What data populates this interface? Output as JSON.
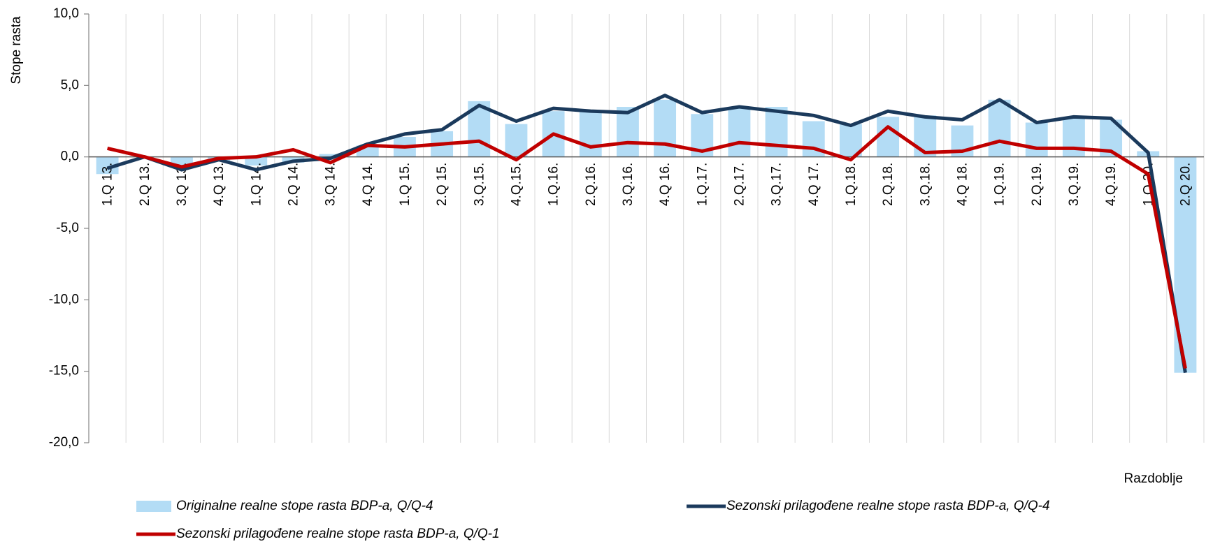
{
  "chart_data": {
    "type": "combo",
    "y_label": "Stope rasta",
    "x_label": "Razdoblje",
    "categories": [
      "1.Q 13.",
      "2.Q 13.",
      "3.Q 13.",
      "4.Q 13.",
      "1.Q 14.",
      "2.Q 14.",
      "3.Q 14.",
      "4.Q 14.",
      "1.Q 15.",
      "2.Q 15.",
      "3.Q.15.",
      "4.Q.15.",
      "1.Q.16.",
      "2.Q.16.",
      "3.Q.16.",
      "4.Q 16.",
      "1.Q.17.",
      "2.Q.17.",
      "3.Q.17.",
      "4.Q 17.",
      "1.Q.18.",
      "2.Q.18.",
      "3.Q.18.",
      "4.Q 18.",
      "1.Q.19.",
      "2.Q.19.",
      "3.Q.19.",
      "4.Q.19.",
      "1.Q 20.",
      "2.Q 20."
    ],
    "series": [
      {
        "name": "Originalne realne stope rasta BDP-a, Q/Q-4",
        "type": "bar",
        "color": "#b3dcf5",
        "values": [
          -1.2,
          0.0,
          -0.7,
          -0.3,
          -0.6,
          -0.4,
          0.2,
          0.8,
          1.4,
          1.8,
          3.9,
          2.3,
          3.2,
          3.2,
          3.5,
          4.0,
          3.0,
          3.4,
          3.5,
          2.5,
          2.3,
          2.8,
          2.9,
          2.2,
          4.0,
          2.4,
          2.8,
          2.6,
          0.4,
          -15.1
        ]
      },
      {
        "name": "Sezonski prilagođene realne stope rasta BDP-a, Q/Q-4",
        "type": "line",
        "color": "#1b3a5c",
        "values": [
          -0.8,
          0.0,
          -0.9,
          -0.2,
          -0.9,
          -0.3,
          -0.1,
          0.9,
          1.6,
          1.9,
          3.6,
          2.5,
          3.4,
          3.2,
          3.1,
          4.3,
          3.1,
          3.5,
          3.2,
          2.9,
          2.2,
          3.2,
          2.8,
          2.6,
          4.0,
          2.4,
          2.8,
          2.7,
          0.3,
          -15.1
        ]
      },
      {
        "name": "Sezonski prilagođene realne stope rasta BDP-a, Q/Q-1",
        "type": "line",
        "color": "#c00000",
        "values": [
          0.6,
          0.0,
          -0.7,
          -0.1,
          0.0,
          0.5,
          -0.4,
          0.8,
          0.7,
          0.9,
          1.1,
          -0.2,
          1.6,
          0.7,
          1.0,
          0.9,
          0.4,
          1.0,
          0.8,
          0.6,
          -0.2,
          2.1,
          0.3,
          0.4,
          1.1,
          0.6,
          0.6,
          0.4,
          -1.2,
          -14.8
        ]
      }
    ],
    "ylim": [
      -20,
      10
    ],
    "yticks": [
      {
        "value": -20,
        "label": "-20,0"
      },
      {
        "value": -15,
        "label": "-15,0"
      },
      {
        "value": -10,
        "label": "-10,0"
      },
      {
        "value": -5,
        "label": "-5,0"
      },
      {
        "value": 0,
        "label": "0,0"
      },
      {
        "value": 5,
        "label": "5,0"
      },
      {
        "value": 10,
        "label": "10,0"
      }
    ]
  }
}
